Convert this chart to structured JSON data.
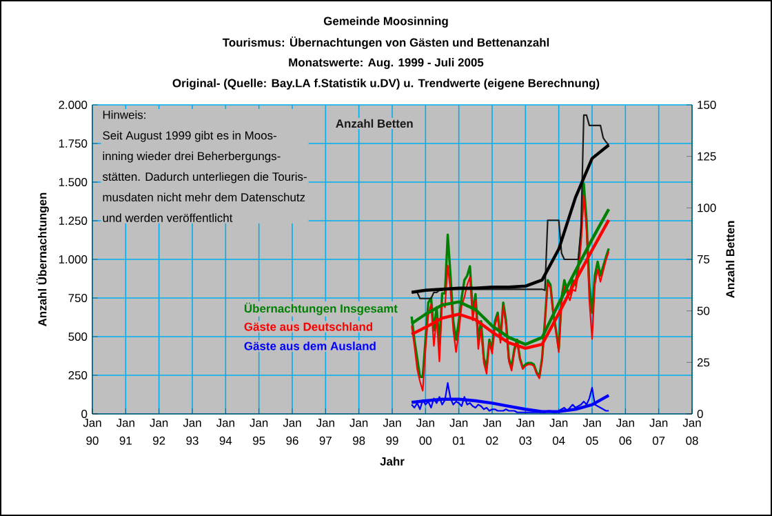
{
  "chart_data": {
    "type": "line",
    "title": "Gemeinde Moosinning",
    "subtitle": "Tourismus: Übernachtungen von Gästen und Bettenanzahl",
    "annotations": [
      "Monatswerte: Aug. 1999 - Juli 2005",
      "Original- (Quelle: Bay.LA f.Statistik u.DV) u. Trendwerte (eigene Berechnung)",
      "Hinweis:",
      "Seit August 1999 gibt es in Moos-",
      "inning wieder drei Beherbergungs-",
      "stätten. Dadurch unterliegen die Touris-",
      "musdaten nicht mehr dem Datenschutz",
      "und werden veröffentlicht"
    ],
    "xlabel": "Jahr",
    "ylabel": "Anzahl Übernachtungen",
    "y2label": "Anzahl Betten",
    "grid": true,
    "xlim": [
      "1990-01",
      "2008-01"
    ],
    "xticks": [
      {
        "value": "1990-01",
        "label": "Jan 90"
      },
      {
        "value": "1991-01",
        "label": "Jan 91"
      },
      {
        "value": "1992-01",
        "label": "Jan 92"
      },
      {
        "value": "1993-01",
        "label": "Jan 93"
      },
      {
        "value": "1994-01",
        "label": "Jan 94"
      },
      {
        "value": "1995-01",
        "label": "Jan 95"
      },
      {
        "value": "1996-01",
        "label": "Jan 96"
      },
      {
        "value": "1997-01",
        "label": "Jan 97"
      },
      {
        "value": "1998-01",
        "label": "Jan 98"
      },
      {
        "value": "1999-01",
        "label": "Jan 99"
      },
      {
        "value": "2000-01",
        "label": "Jan 00"
      },
      {
        "value": "2001-01",
        "label": "Jan 01"
      },
      {
        "value": "2002-01",
        "label": "Jan 02"
      },
      {
        "value": "2003-01",
        "label": "Jan 03"
      },
      {
        "value": "2004-01",
        "label": "Jan 04"
      },
      {
        "value": "2005-01",
        "label": "Jan 05"
      },
      {
        "value": "2006-01",
        "label": "Jan 06"
      },
      {
        "value": "2007-01",
        "label": "Jan 07"
      },
      {
        "value": "2008-01",
        "label": "Jan 08"
      }
    ],
    "ylim": [
      0,
      2000
    ],
    "yticks": [
      0,
      250,
      500,
      750,
      {
        "value": 1000,
        "label": "1.000"
      },
      {
        "value": 1250,
        "label": "1.250"
      },
      {
        "value": 1500,
        "label": "1.500"
      },
      {
        "value": 1750,
        "label": "1.750"
      },
      {
        "value": 2000,
        "label": "2.000"
      }
    ],
    "y2lim": [
      0,
      150
    ],
    "y2ticks": [
      0,
      25,
      50,
      75,
      100,
      125,
      150
    ],
    "x": [
      "1999-08",
      "1999-09",
      "1999-10",
      "1999-11",
      "1999-12",
      "2000-01",
      "2000-02",
      "2000-03",
      "2000-04",
      "2000-05",
      "2000-06",
      "2000-07",
      "2000-08",
      "2000-09",
      "2000-10",
      "2000-11",
      "2000-12",
      "2001-01",
      "2001-02",
      "2001-03",
      "2001-04",
      "2001-05",
      "2001-06",
      "2001-07",
      "2001-08",
      "2001-09",
      "2001-10",
      "2001-11",
      "2001-12",
      "2002-01",
      "2002-02",
      "2002-03",
      "2002-04",
      "2002-05",
      "2002-06",
      "2002-07",
      "2002-08",
      "2002-09",
      "2002-10",
      "2002-11",
      "2002-12",
      "2003-01",
      "2003-02",
      "2003-03",
      "2003-04",
      "2003-05",
      "2003-06",
      "2003-07",
      "2003-08",
      "2003-09",
      "2003-10",
      "2003-11",
      "2003-12",
      "2004-01",
      "2004-02",
      "2004-03",
      "2004-04",
      "2004-05",
      "2004-06",
      "2004-07",
      "2004-08",
      "2004-09",
      "2004-10",
      "2004-11",
      "2004-12",
      "2005-01",
      "2005-02",
      "2005-03",
      "2005-04",
      "2005-05",
      "2005-06",
      "2005-07"
    ],
    "series": [
      {
        "name": "Übernachtungen Insgesamt",
        "color": "#008000",
        "values": [
          630,
          480,
          360,
          240,
          240,
          480,
          720,
          750,
          540,
          690,
          450,
          780,
          780,
          1160,
          895,
          600,
          480,
          600,
          750,
          865,
          895,
          955,
          655,
          775,
          480,
          600,
          360,
          300,
          480,
          420,
          600,
          655,
          480,
          720,
          600,
          360,
          300,
          420,
          480,
          360,
          300,
          320,
          330,
          330,
          320,
          270,
          240,
          360,
          600,
          865,
          835,
          655,
          540,
          420,
          750,
          865,
          805,
          775,
          865,
          835,
          955,
          1160,
          1490,
          1250,
          835,
          655,
          895,
          985,
          895,
          955,
          1015,
          1070
        ]
      },
      {
        "name": "Gäste aus Deutschland",
        "color": "#ff0000",
        "values": [
          570,
          440,
          290,
          210,
          150,
          420,
          640,
          710,
          440,
          620,
          340,
          720,
          690,
          960,
          795,
          540,
          400,
          530,
          700,
          755,
          835,
          885,
          605,
          735,
          420,
          550,
          330,
          260,
          460,
          390,
          570,
          635,
          460,
          700,
          570,
          340,
          280,
          400,
          470,
          350,
          290,
          310,
          320,
          320,
          310,
          260,
          230,
          350,
          590,
          845,
          815,
          645,
          530,
          400,
          720,
          825,
          785,
          735,
          805,
          795,
          905,
          1100,
          1410,
          1190,
          735,
          485,
          835,
          935,
          855,
          925,
          995,
          1050
        ]
      },
      {
        "name": "Gäste aus dem Ausland",
        "color": "#0000ff",
        "values": [
          60,
          40,
          70,
          30,
          90,
          60,
          80,
          40,
          100,
          70,
          110,
          60,
          90,
          200,
          100,
          60,
          80,
          70,
          50,
          110,
          60,
          70,
          50,
          40,
          60,
          50,
          30,
          40,
          20,
          30,
          30,
          20,
          20,
          20,
          30,
          20,
          20,
          20,
          10,
          10,
          10,
          10,
          10,
          10,
          10,
          10,
          10,
          10,
          10,
          20,
          20,
          10,
          10,
          20,
          30,
          40,
          20,
          40,
          60,
          40,
          50,
          60,
          80,
          60,
          100,
          170,
          60,
          50,
          40,
          30,
          20,
          20
        ]
      },
      {
        "name": "Anzahl Betten",
        "color": "#1a1a1a",
        "axis": "y2",
        "values": [
          59,
          59,
          59,
          56,
          56,
          56,
          56,
          56,
          59,
          59,
          60,
          60,
          60.5,
          60.5,
          60.5,
          60.5,
          60.5,
          60.5,
          60.5,
          60.5,
          60.5,
          60.5,
          60.5,
          60.5,
          60.5,
          60.5,
          60.5,
          60.5,
          60.5,
          60.5,
          60.5,
          60.5,
          60.5,
          60.5,
          60.5,
          60.5,
          60.5,
          60.5,
          60.5,
          60.5,
          60.5,
          60.5,
          60.5,
          60.5,
          60.5,
          60.5,
          60.5,
          60.5,
          60,
          94,
          94,
          94,
          94,
          94,
          78,
          75,
          75,
          75,
          75,
          75,
          75,
          90,
          145,
          145,
          140,
          140,
          140,
          140,
          140,
          134,
          132,
          130.5
        ]
      },
      {
        "color": "#008000",
        "x": [
          "1999-08",
          "2000-01",
          "2000-07",
          "2001-01",
          "2001-07",
          "2002-01",
          "2002-07",
          "2003-01",
          "2003-07",
          "2004-01",
          "2004-07",
          "2005-01",
          "2005-07"
        ],
        "values": [
          585,
          645,
          705,
          725,
          675,
          570,
          495,
          450,
          495,
          715,
          925,
          1130,
          1325
        ]
      },
      {
        "color": "#ff0000",
        "x": [
          "1999-08",
          "2000-01",
          "2000-07",
          "2001-01",
          "2001-07",
          "2002-01",
          "2002-07",
          "2003-01",
          "2003-07",
          "2004-01",
          "2004-07",
          "2005-01",
          "2005-07"
        ],
        "values": [
          515,
          560,
          620,
          645,
          610,
          530,
          460,
          425,
          450,
          650,
          860,
          1060,
          1255
        ]
      },
      {
        "color": "#0000ff",
        "x": [
          "1999-08",
          "2000-01",
          "2000-07",
          "2001-01",
          "2001-07",
          "2002-01",
          "2002-07",
          "2003-01",
          "2003-07",
          "2004-01",
          "2004-07",
          "2005-01",
          "2005-07"
        ],
        "values": [
          75,
          85,
          95,
          95,
          85,
          70,
          50,
          30,
          15,
          15,
          30,
          60,
          120
        ]
      },
      {
        "color": "#000000",
        "axis": "y2",
        "x": [
          "1999-08",
          "2000-01",
          "2000-07",
          "2001-01",
          "2001-07",
          "2002-01",
          "2002-07",
          "2003-01",
          "2003-07",
          "2004-01",
          "2004-07",
          "2005-01",
          "2005-07"
        ],
        "values": [
          59,
          60,
          60.5,
          61,
          61,
          61.5,
          61.5,
          62,
          65,
          80,
          105,
          124,
          130.5
        ]
      }
    ]
  }
}
